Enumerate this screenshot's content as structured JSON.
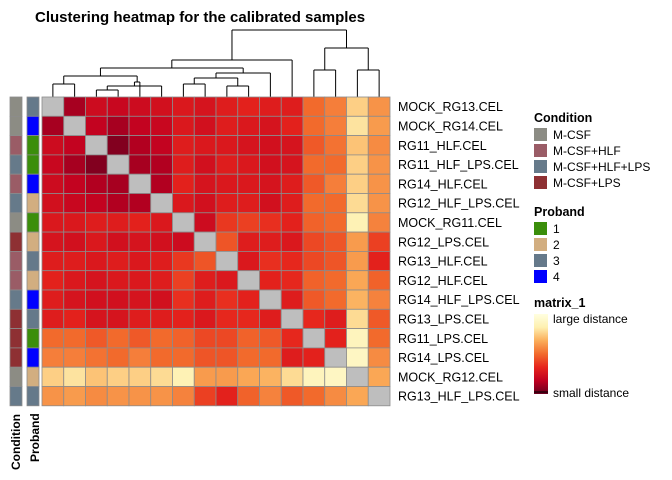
{
  "chart_data": {
    "type": "heatmap",
    "title": "Clustering heatmap for the calibrated samples",
    "rows": [
      "MOCK_RG13.CEL",
      "MOCK_RG14.CEL",
      "RG11_HLF.CEL",
      "RG11_HLF_LPS.CEL",
      "RG14_HLF.CEL",
      "RG12_HLF_LPS.CEL",
      "MOCK_RG11.CEL",
      "RG12_LPS.CEL",
      "RG13_HLF.CEL",
      "RG12_HLF.CEL",
      "RG14_HLF_LPS.CEL",
      "RG13_LPS.CEL",
      "RG11_LPS.CEL",
      "RG14_LPS.CEL",
      "MOCK_RG12.CEL",
      "RG13_HLF_LPS.CEL"
    ],
    "matrix": [
      [
        null,
        0.12,
        0.22,
        0.2,
        0.22,
        0.24,
        0.28,
        0.26,
        0.3,
        0.32,
        0.3,
        0.3,
        0.5,
        0.55,
        0.75,
        0.6
      ],
      [
        0.12,
        null,
        0.18,
        0.12,
        0.18,
        0.2,
        0.28,
        0.24,
        0.3,
        0.28,
        0.26,
        0.32,
        0.5,
        0.55,
        0.8,
        0.62
      ],
      [
        0.22,
        0.18,
        null,
        0.05,
        0.14,
        0.18,
        0.3,
        0.28,
        0.28,
        0.26,
        0.24,
        0.26,
        0.46,
        0.52,
        0.72,
        0.58
      ],
      [
        0.2,
        0.12,
        0.05,
        null,
        0.12,
        0.14,
        0.3,
        0.24,
        0.3,
        0.28,
        0.24,
        0.26,
        0.5,
        0.5,
        0.75,
        0.6
      ],
      [
        0.22,
        0.18,
        0.14,
        0.12,
        null,
        0.14,
        0.32,
        0.26,
        0.28,
        0.28,
        0.26,
        0.3,
        0.46,
        0.55,
        0.75,
        0.6
      ],
      [
        0.24,
        0.2,
        0.18,
        0.14,
        0.14,
        null,
        0.28,
        0.24,
        0.3,
        0.3,
        0.24,
        0.3,
        0.5,
        0.5,
        0.78,
        0.6
      ],
      [
        0.28,
        0.28,
        0.3,
        0.3,
        0.32,
        0.28,
        null,
        0.22,
        0.38,
        0.4,
        0.36,
        0.32,
        0.48,
        0.5,
        0.85,
        0.56
      ],
      [
        0.26,
        0.24,
        0.28,
        0.24,
        0.26,
        0.24,
        0.22,
        null,
        0.45,
        0.3,
        0.3,
        0.28,
        0.42,
        0.45,
        0.62,
        0.4
      ],
      [
        0.3,
        0.3,
        0.28,
        0.3,
        0.28,
        0.3,
        0.38,
        0.45,
        null,
        0.28,
        0.36,
        0.34,
        0.42,
        0.45,
        0.62,
        0.32
      ],
      [
        0.32,
        0.28,
        0.26,
        0.28,
        0.28,
        0.3,
        0.4,
        0.3,
        0.28,
        null,
        0.32,
        0.34,
        0.48,
        0.5,
        0.65,
        0.48
      ],
      [
        0.3,
        0.26,
        0.24,
        0.24,
        0.26,
        0.24,
        0.36,
        0.3,
        0.36,
        0.32,
        null,
        0.3,
        0.46,
        0.5,
        0.68,
        0.56
      ],
      [
        0.3,
        0.32,
        0.26,
        0.26,
        0.3,
        0.3,
        0.32,
        0.28,
        0.34,
        0.34,
        0.3,
        null,
        0.34,
        0.3,
        0.78,
        0.46
      ],
      [
        0.5,
        0.5,
        0.46,
        0.5,
        0.46,
        0.5,
        0.48,
        0.42,
        0.42,
        0.48,
        0.46,
        0.34,
        null,
        0.32,
        0.88,
        0.5
      ],
      [
        0.55,
        0.55,
        0.52,
        0.5,
        0.55,
        0.5,
        0.5,
        0.45,
        0.45,
        0.5,
        0.5,
        0.3,
        0.32,
        null,
        0.9,
        0.58
      ],
      [
        0.75,
        0.8,
        0.72,
        0.75,
        0.75,
        0.78,
        0.85,
        0.62,
        0.62,
        0.65,
        0.68,
        0.78,
        0.88,
        0.9,
        null,
        0.65
      ],
      [
        0.6,
        0.62,
        0.58,
        0.6,
        0.6,
        0.6,
        0.56,
        0.4,
        0.32,
        0.48,
        0.56,
        0.46,
        0.5,
        0.58,
        0.65,
        null
      ]
    ],
    "condition": [
      "M-CSF",
      "M-CSF",
      "M-CSF+HLF",
      "M-CSF+HLF+LPS",
      "M-CSF+HLF",
      "M-CSF+HLF+LPS",
      "M-CSF",
      "M-CSF+LPS",
      "M-CSF+HLF",
      "M-CSF+HLF",
      "M-CSF+HLF+LPS",
      "M-CSF+LPS",
      "M-CSF+LPS",
      "M-CSF+LPS",
      "M-CSF",
      "M-CSF+HLF+LPS"
    ],
    "proband": [
      "3",
      "4",
      "1",
      "1",
      "4",
      "2",
      "1",
      "2",
      "3",
      "2",
      "4",
      "3",
      "1",
      "4",
      "2",
      "3"
    ],
    "annotation_labels": {
      "condition": "Condition",
      "proband": "Proband"
    },
    "legend": {
      "condition": {
        "title": "Condition",
        "items": [
          {
            "label": "M-CSF",
            "color": "#8C8C84"
          },
          {
            "label": "M-CSF+HLF",
            "color": "#9A5C66"
          },
          {
            "label": "M-CSF+HLF+LPS",
            "color": "#667A8A"
          },
          {
            "label": "M-CSF+LPS",
            "color": "#8E3033"
          }
        ]
      },
      "proband": {
        "title": "Proband",
        "items": [
          {
            "label": "1",
            "color": "#3B8E0B"
          },
          {
            "label": "2",
            "color": "#D2AE80"
          },
          {
            "label": "3",
            "color": "#65798A"
          },
          {
            "label": "4",
            "color": "#0000FF"
          }
        ]
      },
      "scale": {
        "title": "matrix_1",
        "high_label": "large distance",
        "low_label": "small distance"
      }
    },
    "diagonal_color": "#BEBEBE",
    "color_scale": [
      "#67001F",
      "#C00020",
      "#E6241C",
      "#F26A2C",
      "#FBAE5A",
      "#FEF0B0",
      "#FFFFE0"
    ]
  }
}
